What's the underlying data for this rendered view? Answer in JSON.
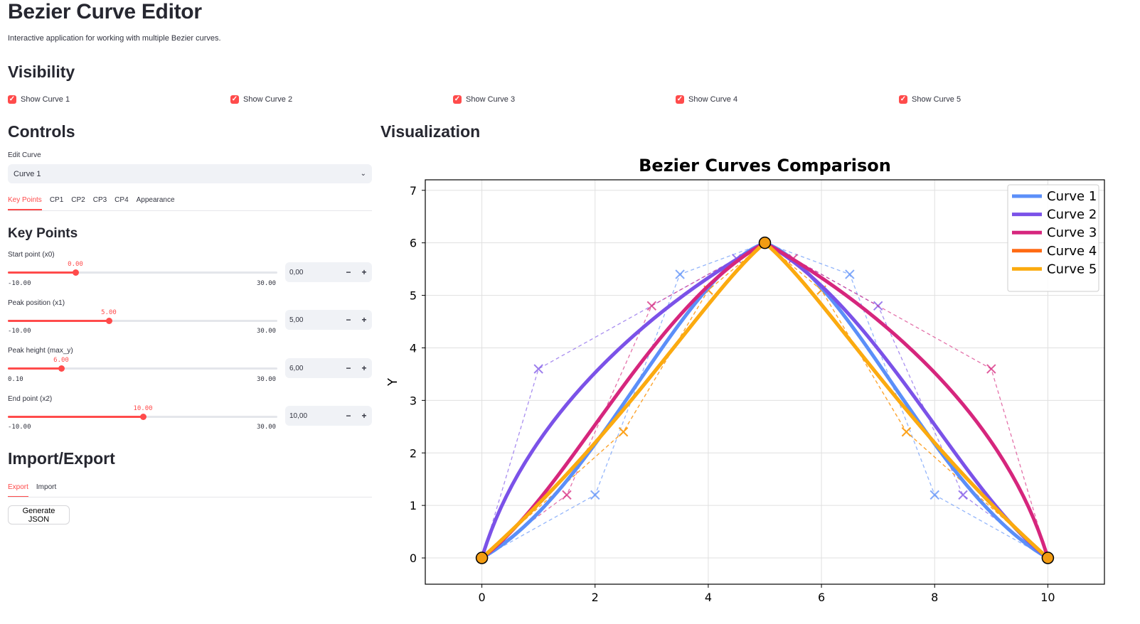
{
  "page": {
    "title": "Bezier Curve Editor",
    "subtitle": "Interactive application for working with multiple Bezier curves."
  },
  "visibility": {
    "heading": "Visibility",
    "items": [
      {
        "label": "Show Curve 1",
        "checked": true
      },
      {
        "label": "Show Curve 2",
        "checked": true
      },
      {
        "label": "Show Curve 3",
        "checked": true
      },
      {
        "label": "Show Curve 4",
        "checked": true
      },
      {
        "label": "Show Curve 5",
        "checked": true
      }
    ]
  },
  "controls": {
    "heading": "Controls",
    "edit_curve_label": "Edit Curve",
    "edit_curve_value": "Curve 1",
    "tabs": [
      "Key Points",
      "CP1",
      "CP2",
      "CP3",
      "CP4",
      "Appearance"
    ],
    "active_tab": "Key Points",
    "section_heading": "Key Points",
    "sliders": [
      {
        "label": "Start point (x0)",
        "value": "0.00",
        "min": "-10.00",
        "max": "30.00",
        "fraction": 0.25,
        "input": "0,00"
      },
      {
        "label": "Peak position (x1)",
        "value": "5.00",
        "min": "-10.00",
        "max": "30.00",
        "fraction": 0.375,
        "input": "5,00"
      },
      {
        "label": "Peak height (max_y)",
        "value": "6.00",
        "min": "0.10",
        "max": "30.00",
        "fraction": 0.1973,
        "input": "6,00"
      },
      {
        "label": "End point (x2)",
        "value": "10.00",
        "min": "-10.00",
        "max": "30.00",
        "fraction": 0.5,
        "input": "10,00"
      }
    ],
    "minus_label": "−",
    "plus_label": "+"
  },
  "import_export": {
    "heading": "Import/Export",
    "tabs": [
      "Export",
      "Import"
    ],
    "active_tab": "Export",
    "button_label": "Generate JSON"
  },
  "visualization": {
    "heading": "Visualization"
  },
  "chart_data": {
    "type": "line",
    "title": "Bezier Curves Comparison",
    "xlabel": "",
    "ylabel": "Y",
    "xlim": [
      -1,
      11
    ],
    "ylim": [
      -0.5,
      7.2
    ],
    "xticks": [
      0,
      2,
      4,
      6,
      8,
      10
    ],
    "yticks": [
      0,
      1,
      2,
      3,
      4,
      5,
      6,
      7
    ],
    "grid": true,
    "legend_placement": "top-right",
    "key_points": [
      [
        0,
        0
      ],
      [
        5,
        6
      ],
      [
        10,
        0
      ]
    ],
    "series": [
      {
        "name": "Curve 1",
        "color": "#5b8ff9",
        "left": [
          [
            0,
            0
          ],
          [
            2,
            1.2
          ],
          [
            3.5,
            5.4
          ],
          [
            5,
            6
          ]
        ],
        "right": [
          [
            5,
            6
          ],
          [
            6.5,
            5.4
          ],
          [
            8,
            1.2
          ],
          [
            10,
            0
          ]
        ]
      },
      {
        "name": "Curve 2",
        "color": "#7b52e8",
        "left": [
          [
            0,
            0
          ],
          [
            1,
            3.6
          ],
          [
            4.5,
            5.7
          ],
          [
            5,
            6
          ]
        ],
        "right": [
          [
            5,
            6
          ],
          [
            7,
            4.8
          ],
          [
            8.5,
            1.2
          ],
          [
            10,
            0
          ]
        ]
      },
      {
        "name": "Curve 3",
        "color": "#d6267d",
        "left": [
          [
            0,
            0
          ],
          [
            1.5,
            1.2
          ],
          [
            3,
            4.8
          ],
          [
            5,
            6
          ]
        ],
        "right": [
          [
            5,
            6
          ],
          [
            5.5,
            5.7
          ],
          [
            9,
            3.6
          ],
          [
            10,
            0
          ]
        ]
      },
      {
        "name": "Curve 4",
        "color": "#ff6a13",
        "left": [
          [
            0,
            0
          ],
          [
            2.5,
            2.4
          ],
          [
            4,
            5.1
          ],
          [
            5,
            6
          ]
        ],
        "right": [
          [
            5,
            6
          ],
          [
            6,
            5.1
          ],
          [
            7.5,
            2.4
          ],
          [
            10,
            0
          ]
        ]
      },
      {
        "name": "Curve 5",
        "color": "#fbab0f",
        "left": [
          [
            0,
            0
          ],
          [
            2.5,
            2.4
          ],
          [
            4,
            5.1
          ],
          [
            5,
            6
          ]
        ],
        "right": [
          [
            5,
            6
          ],
          [
            6,
            5.1
          ],
          [
            7.5,
            2.4
          ],
          [
            10,
            0
          ]
        ]
      }
    ]
  }
}
